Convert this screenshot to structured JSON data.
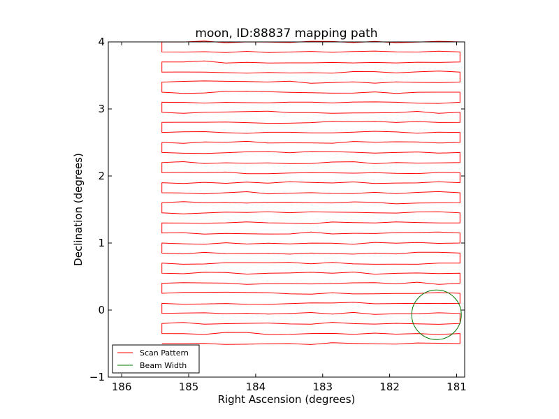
{
  "chart_data": {
    "type": "line",
    "title": "moon, ID:88837 mapping path",
    "xlabel": "Right Ascension (degrees)",
    "ylabel": "Declination (degrees)",
    "xlim": [
      186.2,
      180.88
    ],
    "ylim": [
      -1,
      4
    ],
    "x_ticks": [
      186,
      185,
      184,
      183,
      182,
      181
    ],
    "x_tick_labels": [
      "186",
      "185",
      "184",
      "183",
      "182",
      "181"
    ],
    "y_ticks": [
      -1,
      0,
      1,
      2,
      3,
      4
    ],
    "y_tick_labels": [
      "−1",
      "0",
      "1",
      "2",
      "3",
      "4"
    ],
    "grid": false,
    "legend_position": "lower-left",
    "series": [
      {
        "name": "Scan Pattern",
        "color": "#ff0000",
        "ra_range": [
          185.4,
          180.95
        ],
        "scan_rows_dec": [
          -0.5,
          -0.35,
          -0.2,
          -0.05,
          0.1,
          0.25,
          0.4,
          0.55,
          0.7,
          0.85,
          1.0,
          1.15,
          1.3,
          1.45,
          1.6,
          1.75,
          1.9,
          2.05,
          2.2,
          2.35,
          2.5,
          2.65,
          2.8,
          2.95,
          3.1,
          3.25,
          3.4,
          3.55,
          3.7,
          3.85,
          4.0
        ]
      },
      {
        "name": "Beam Width",
        "color": "#007700",
        "center_ra": 181.3,
        "center_dec": -0.07,
        "radius_deg": 0.37
      }
    ]
  }
}
